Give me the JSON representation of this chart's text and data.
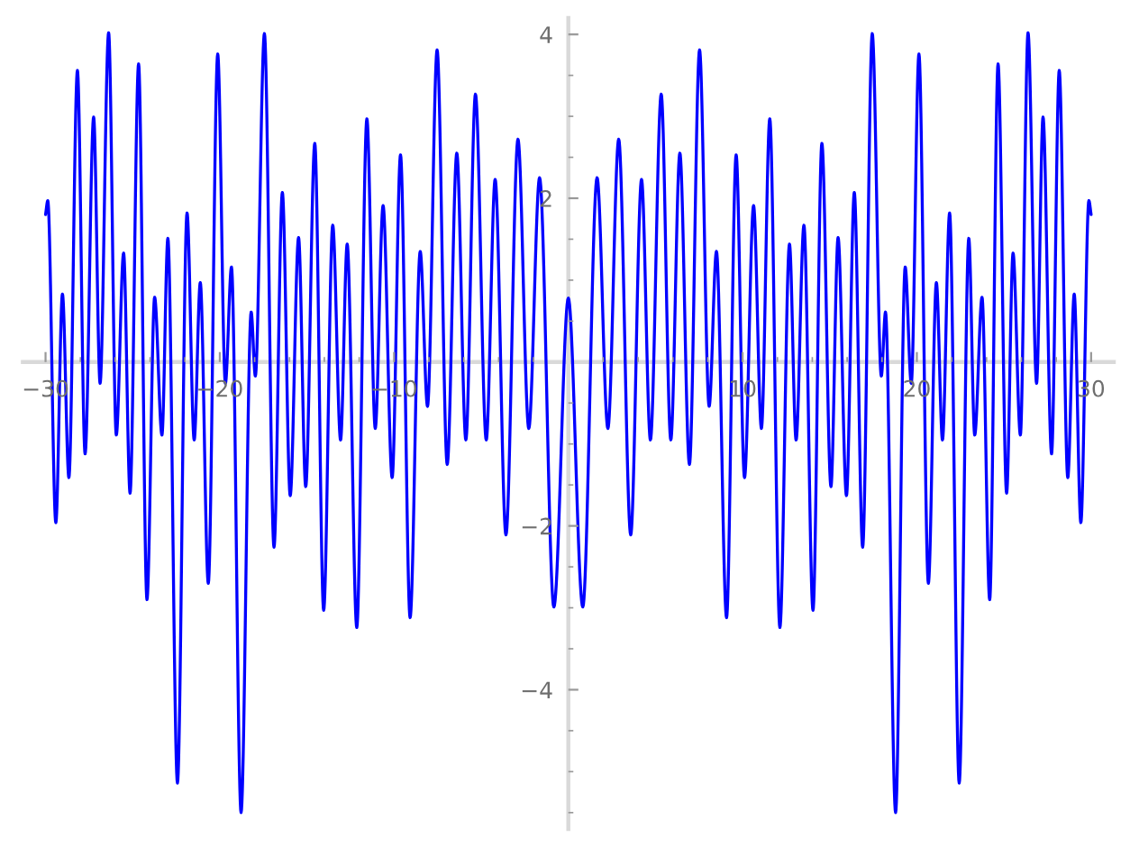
{
  "chart_data": {
    "type": "line",
    "x": [
      -30.0,
      -29.87,
      -29.41,
      -29.03,
      -28.66,
      -28.17,
      -27.73,
      -27.24,
      -26.87,
      -26.38,
      -25.94,
      -25.52,
      -25.15,
      -24.66,
      -24.18,
      -23.74,
      -23.32,
      -22.98,
      -22.43,
      -21.88,
      -21.47,
      -21.12,
      -20.66,
      -20.12,
      -19.68,
      -19.33,
      -18.78,
      -18.2,
      -17.96,
      -17.44,
      -16.89,
      -16.41,
      -15.96,
      -15.48,
      -15.07,
      -14.55,
      -14.04,
      -13.52,
      -13.07,
      -12.69,
      -12.14,
      -11.56,
      -11.08,
      -10.63,
      -10.11,
      -9.63,
      -9.08,
      -8.5,
      -8.08,
      -7.53,
      -6.95,
      -6.4,
      -5.88,
      -5.33,
      -4.71,
      -4.2,
      -3.58,
      -2.89,
      -2.27,
      -1.65,
      -0.83,
      0.0,
      0.83,
      1.65,
      2.27,
      2.89,
      3.58,
      4.2,
      4.71,
      5.33,
      5.88,
      6.4,
      6.95,
      7.53,
      8.08,
      8.5,
      9.08,
      9.63,
      10.11,
      10.63,
      11.08,
      11.56,
      12.14,
      12.69,
      13.07,
      13.52,
      14.04,
      14.55,
      15.07,
      15.48,
      15.96,
      16.41,
      16.89,
      17.44,
      17.96,
      18.2,
      18.78,
      19.33,
      19.68,
      20.12,
      20.66,
      21.12,
      21.47,
      21.88,
      22.43,
      22.98,
      23.32,
      23.74,
      24.18,
      24.66,
      25.15,
      25.52,
      25.94,
      26.38,
      26.87,
      27.24,
      27.73,
      28.17,
      28.66,
      29.03,
      29.41,
      29.87,
      30.0
    ],
    "series": [
      {
        "color": "#0000ff",
        "values": [
          1.8,
          1.97,
          -1.96,
          0.83,
          -1.41,
          3.56,
          -1.12,
          2.99,
          -0.26,
          4.02,
          -0.89,
          1.33,
          -1.6,
          3.64,
          -2.9,
          0.79,
          -0.89,
          1.51,
          -5.14,
          1.82,
          -0.95,
          0.97,
          -2.7,
          3.76,
          -0.26,
          1.16,
          -5.5,
          0.61,
          -0.17,
          4.01,
          -2.26,
          2.07,
          -1.63,
          1.52,
          -1.52,
          2.67,
          -3.03,
          1.67,
          -0.95,
          1.44,
          -3.24,
          2.97,
          -0.81,
          1.91,
          -1.41,
          2.53,
          -3.12,
          1.35,
          -0.54,
          3.81,
          -1.25,
          2.55,
          -0.95,
          3.27,
          -0.95,
          2.23,
          -2.11,
          2.72,
          -0.81,
          2.25,
          -2.99,
          0.78,
          -2.99,
          2.25,
          -0.81,
          2.72,
          -2.11,
          2.23,
          -0.95,
          3.27,
          -0.95,
          2.55,
          -1.25,
          3.81,
          -0.54,
          1.35,
          -3.12,
          2.53,
          -1.41,
          1.91,
          -0.81,
          2.97,
          -3.24,
          1.44,
          -0.95,
          1.67,
          -3.03,
          2.67,
          -1.52,
          1.52,
          -1.63,
          2.07,
          -2.26,
          4.01,
          -0.17,
          0.61,
          -5.5,
          1.16,
          -0.26,
          3.76,
          -2.7,
          0.97,
          -0.95,
          1.82,
          -5.14,
          1.51,
          -0.89,
          0.79,
          -2.9,
          3.64,
          -1.6,
          1.33,
          -0.89,
          4.02,
          -0.26,
          2.99,
          -1.12,
          3.56,
          -1.41,
          0.83,
          -1.96,
          1.97,
          1.8
        ]
      }
    ],
    "xlim": [
      -31.3,
      31.3
    ],
    "ylim": [
      -5.7,
      4.2
    ],
    "xticks": [
      {
        "value": -30,
        "label": "−30"
      },
      {
        "value": -28,
        "label": null
      },
      {
        "value": -26,
        "label": null
      },
      {
        "value": -24,
        "label": null
      },
      {
        "value": -22,
        "label": null
      },
      {
        "value": -20,
        "label": "−20"
      },
      {
        "value": -18,
        "label": null
      },
      {
        "value": -16,
        "label": null
      },
      {
        "value": -14,
        "label": null
      },
      {
        "value": -12,
        "label": null
      },
      {
        "value": -10,
        "label": "−10"
      },
      {
        "value": -8,
        "label": null
      },
      {
        "value": -6,
        "label": null
      },
      {
        "value": -4,
        "label": null
      },
      {
        "value": -2,
        "label": null
      },
      {
        "value": 2,
        "label": null
      },
      {
        "value": 4,
        "label": null
      },
      {
        "value": 6,
        "label": null
      },
      {
        "value": 8,
        "label": null
      },
      10,
      {
        "value": 12,
        "label": null
      },
      {
        "value": 14,
        "label": null
      },
      {
        "value": 16,
        "label": null
      },
      {
        "value": 18,
        "label": null
      },
      20,
      {
        "value": 22,
        "label": null
      },
      {
        "value": 24,
        "label": null
      },
      {
        "value": 26,
        "label": null
      },
      {
        "value": 28,
        "label": null
      },
      30
    ],
    "yticks": [
      {
        "value": -5.5,
        "label": null
      },
      {
        "value": -5,
        "label": null
      },
      {
        "value": -4.5,
        "label": null
      },
      {
        "value": -4,
        "label": "−4"
      },
      {
        "value": -3.5,
        "label": null
      },
      {
        "value": -3,
        "label": null
      },
      {
        "value": -2.5,
        "label": null
      },
      {
        "value": -2,
        "label": "−2"
      },
      {
        "value": -1.5,
        "label": null
      },
      {
        "value": -1,
        "label": null
      },
      {
        "value": -0.5,
        "label": null
      },
      {
        "value": 0.5,
        "label": null
      },
      {
        "value": 1,
        "label": null
      },
      {
        "value": 1.5,
        "label": null
      },
      2,
      {
        "value": 2.5,
        "label": null
      },
      {
        "value": 3,
        "label": null
      },
      {
        "value": 3.5,
        "label": null
      },
      4
    ],
    "grid": false,
    "marker": "none",
    "line_style": "solid"
  }
}
